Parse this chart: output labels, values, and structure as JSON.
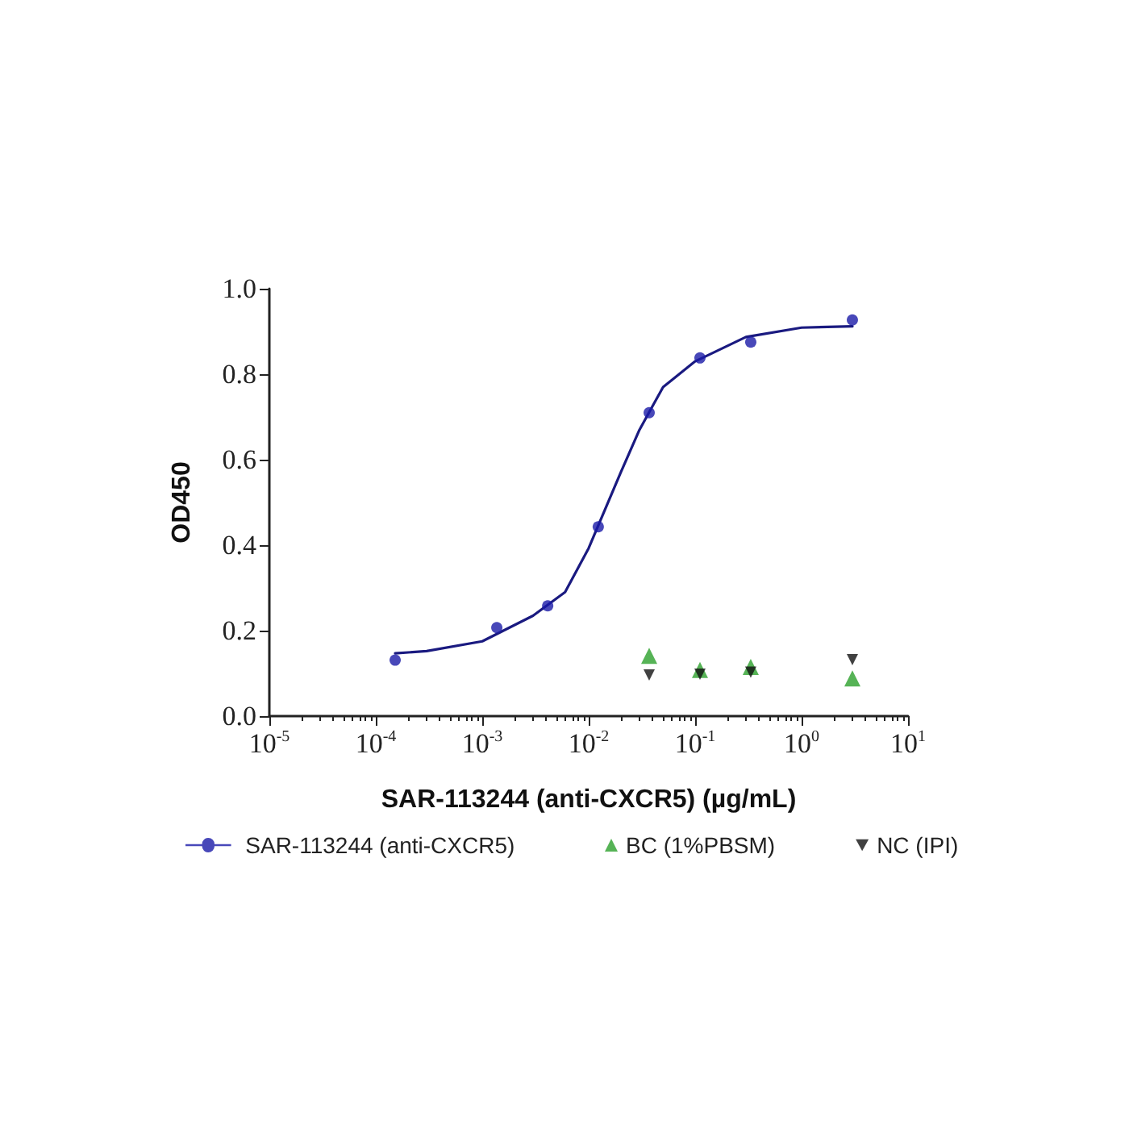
{
  "chart_data": {
    "type": "scatter",
    "xlabel": "SAR-113244 (anti-CXCR5) (µg/mL)",
    "ylabel": "OD450",
    "log": "x",
    "grid": false,
    "legend": "bottom",
    "xlim": [
      1e-05,
      10
    ],
    "ylim": [
      0,
      1.0
    ],
    "xticks": [
      {
        "value": 1e-05,
        "label": "10$^{-5}$"
      },
      {
        "value": 0.0001,
        "label": "10$^{-4}$"
      },
      {
        "value": 0.001,
        "label": "10$^{-3}$"
      },
      {
        "value": 0.01,
        "label": "10$^{-2}$"
      },
      {
        "value": 0.1,
        "label": "10$^{-1}$"
      },
      {
        "value": 1,
        "label": "10$^{0}$"
      },
      {
        "value": 10,
        "label": "10$^{1}$"
      }
    ],
    "yticks": [
      {
        "value": 0,
        "label": "0.0"
      },
      {
        "value": 0.2,
        "label": "0.2"
      },
      {
        "value": 0.4,
        "label": "0.4"
      },
      {
        "value": 0.6,
        "label": "0.6"
      },
      {
        "value": 0.8,
        "label": "0.8"
      },
      {
        "value": 1,
        "label": "1.0"
      }
    ],
    "series": [
      {
        "name": "SAR-113244 (anti-CXCR5)",
        "marker": "circle",
        "color": "#1a1aa8",
        "x": [
          0.000152,
          0.00137,
          0.00412,
          0.0123,
          0.037,
          0.111,
          0.333,
          3
        ],
        "values": [
          0.131,
          0.207,
          0.258,
          0.443,
          0.71,
          0.838,
          0.875,
          0.927
        ]
      },
      {
        "type": "line",
        "marker": "none",
        "line_style": "solid",
        "color": "#1a1a80",
        "x": [
          0.000152,
          0.0003,
          0.001,
          0.003,
          0.006,
          0.01,
          0.02,
          0.03,
          0.05,
          0.1,
          0.3,
          1,
          3
        ],
        "values": [
          0.147,
          0.152,
          0.175,
          0.235,
          0.29,
          0.393,
          0.57,
          0.67,
          0.77,
          0.83,
          0.887,
          0.909,
          0.912
        ]
      },
      {
        "name": "BC (1%PBSM)",
        "marker": "triangle",
        "color": "#2ca02c",
        "x": [
          0.037,
          0.111,
          0.333,
          3
        ],
        "values": [
          0.141,
          0.108,
          0.115,
          0.088
        ]
      },
      {
        "name": "NC (IPI)",
        "marker": "triangle-down",
        "color": "#111111",
        "x": [
          0.037,
          0.111,
          0.333,
          3
        ],
        "values": [
          0.096,
          0.098,
          0.103,
          0.132
        ]
      }
    ]
  }
}
